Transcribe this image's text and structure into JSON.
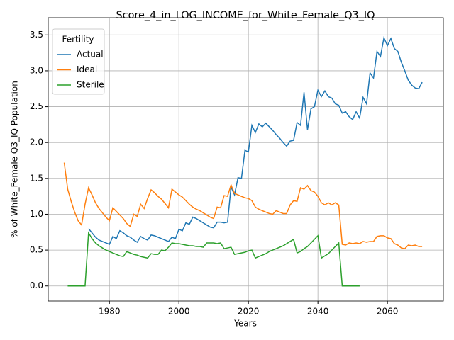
{
  "chart_data": {
    "type": "line",
    "title": "Score_4_in_LOG_INCOME_for_White_Female_Q3_IQ",
    "xlabel": "Years",
    "ylabel": "% of White_Female Q3_IQ Population",
    "legend_title": "Fertility",
    "legend": "upper left",
    "grid": true,
    "xlim": [
      1962.4,
      2076.1
    ],
    "ylim": [
      -0.21,
      3.74
    ],
    "xticks": [
      1980,
      2000,
      2020,
      2040,
      2060
    ],
    "yticks": [
      {
        "value": 0,
        "label": "0.0"
      },
      {
        "value": 0.5,
        "label": "0.5"
      },
      {
        "value": 1,
        "label": "1.0"
      },
      {
        "value": 1.5,
        "label": "1.5"
      },
      {
        "value": 2,
        "label": "2.0"
      },
      {
        "value": 2.5,
        "label": "2.5"
      },
      {
        "value": 3,
        "label": "3.0"
      },
      {
        "value": 3.5,
        "label": "3.5"
      }
    ],
    "x": [
      1967,
      1968,
      1969,
      1970,
      1971,
      1972,
      1973,
      1974,
      1975,
      1976,
      1977,
      1978,
      1979,
      1980,
      1981,
      1982,
      1983,
      1984,
      1985,
      1986,
      1987,
      1988,
      1989,
      1990,
      1991,
      1992,
      1993,
      1994,
      1995,
      1996,
      1997,
      1998,
      1999,
      2000,
      2001,
      2002,
      2003,
      2004,
      2005,
      2006,
      2007,
      2008,
      2009,
      2010,
      2011,
      2012,
      2013,
      2014,
      2015,
      2016,
      2017,
      2018,
      2019,
      2020,
      2021,
      2022,
      2023,
      2024,
      2025,
      2026,
      2027,
      2028,
      2029,
      2030,
      2031,
      2032,
      2033,
      2034,
      2035,
      2036,
      2037,
      2038,
      2039,
      2040,
      2041,
      2042,
      2043,
      2044,
      2045,
      2046,
      2047,
      2048,
      2049,
      2050,
      2051,
      2052,
      2053,
      2054,
      2055,
      2056,
      2057,
      2058,
      2059,
      2060,
      2061,
      2062,
      2063,
      2064,
      2065,
      2066,
      2067,
      2068,
      2069,
      2070
    ],
    "series": [
      {
        "name": "Actual",
        "color": "#1f77b4",
        "values": [
          null,
          null,
          null,
          null,
          null,
          null,
          null,
          0.8,
          0.74,
          0.68,
          0.64,
          0.62,
          0.6,
          0.58,
          0.69,
          0.66,
          0.77,
          0.74,
          0.7,
          0.68,
          0.64,
          0.61,
          0.69,
          0.66,
          0.64,
          0.71,
          0.7,
          0.68,
          0.66,
          0.64,
          0.62,
          0.68,
          0.66,
          0.79,
          0.77,
          0.88,
          0.86,
          0.96,
          0.94,
          0.91,
          0.88,
          0.85,
          0.82,
          0.81,
          0.89,
          0.89,
          0.88,
          0.89,
          1.38,
          1.27,
          1.51,
          1.5,
          1.89,
          1.87,
          2.24,
          2.14,
          2.26,
          2.22,
          2.27,
          2.22,
          2.17,
          2.11,
          2.06,
          2.0,
          1.95,
          2.02,
          2.03,
          2.28,
          2.24,
          2.7,
          2.18,
          2.47,
          2.5,
          2.73,
          2.64,
          2.72,
          2.64,
          2.62,
          2.54,
          2.52,
          2.41,
          2.43,
          2.36,
          2.32,
          2.43,
          2.34,
          2.63,
          2.54,
          2.97,
          2.9,
          3.27,
          3.2,
          3.46,
          3.35,
          3.45,
          3.31,
          3.27,
          3.12,
          3.0,
          2.87,
          2.8,
          2.76,
          2.75,
          2.84
        ]
      },
      {
        "name": "Ideal",
        "color": "#ff7f0e",
        "values": [
          1.72,
          1.35,
          1.18,
          1.03,
          0.91,
          0.85,
          1.14,
          1.37,
          1.27,
          1.16,
          1.08,
          1.02,
          0.96,
          0.91,
          1.09,
          1.04,
          0.99,
          0.94,
          0.87,
          0.83,
          1.0,
          0.97,
          1.14,
          1.08,
          1.22,
          1.34,
          1.3,
          1.25,
          1.21,
          1.15,
          1.09,
          1.35,
          1.31,
          1.27,
          1.24,
          1.19,
          1.14,
          1.1,
          1.07,
          1.05,
          1.02,
          0.99,
          0.96,
          0.94,
          1.1,
          1.09,
          1.26,
          1.25,
          1.41,
          1.29,
          1.27,
          1.25,
          1.23,
          1.22,
          1.19,
          1.1,
          1.07,
          1.05,
          1.03,
          1.01,
          1.0,
          1.05,
          1.03,
          1.01,
          1.01,
          1.13,
          1.19,
          1.18,
          1.37,
          1.35,
          1.4,
          1.33,
          1.31,
          1.25,
          1.16,
          1.13,
          1.16,
          1.13,
          1.16,
          1.13,
          0.58,
          0.57,
          0.6,
          0.59,
          0.6,
          0.59,
          0.62,
          0.61,
          0.62,
          0.62,
          0.69,
          0.7,
          0.7,
          0.67,
          0.66,
          0.59,
          0.57,
          0.53,
          0.52,
          0.57,
          0.56,
          0.57,
          0.55,
          0.55
        ]
      },
      {
        "name": "Sterile",
        "color": "#2ca02c",
        "values": [
          null,
          0,
          0,
          0,
          0,
          0,
          0,
          0.74,
          0.66,
          0.6,
          0.56,
          0.53,
          0.5,
          0.48,
          0.46,
          0.44,
          0.42,
          0.41,
          0.48,
          0.46,
          0.44,
          0.43,
          0.41,
          0.4,
          0.39,
          0.45,
          0.44,
          0.44,
          0.5,
          0.49,
          0.54,
          0.6,
          0.59,
          0.59,
          0.58,
          0.57,
          0.56,
          0.56,
          0.55,
          0.55,
          0.54,
          0.6,
          0.6,
          0.6,
          0.59,
          0.6,
          0.52,
          0.53,
          0.54,
          0.44,
          0.45,
          0.46,
          0.47,
          0.49,
          0.5,
          0.39,
          0.41,
          0.43,
          0.45,
          0.48,
          0.5,
          0.52,
          0.54,
          0.56,
          0.59,
          0.62,
          0.65,
          0.46,
          0.48,
          0.52,
          0.55,
          0.6,
          0.65,
          0.7,
          0.39,
          0.42,
          0.45,
          0.5,
          0.55,
          0.6,
          0,
          0,
          0,
          0,
          0,
          0,
          null,
          null,
          null,
          null,
          null,
          null,
          null,
          null,
          null,
          null,
          null,
          null,
          null,
          null,
          null,
          null,
          null,
          null
        ]
      }
    ]
  }
}
